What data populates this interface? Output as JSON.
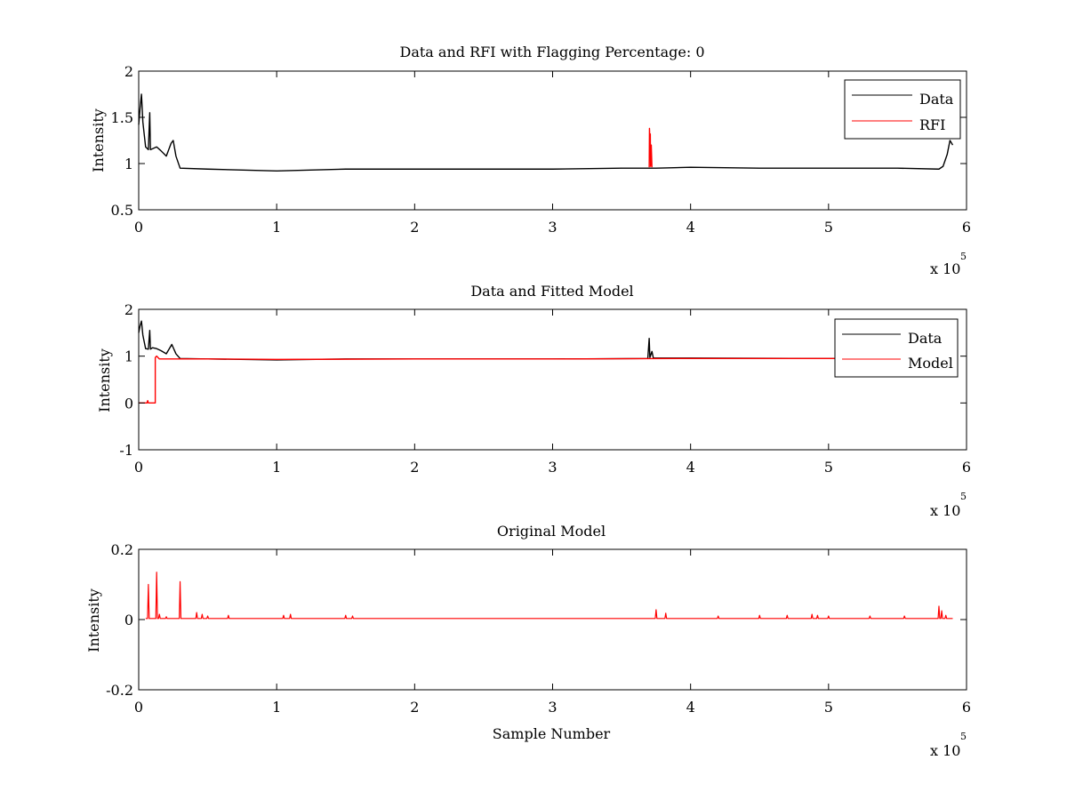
{
  "chart_data": [
    {
      "type": "line",
      "title": "Data and RFI with Flagging Percentage: 0",
      "xlabel": "",
      "ylabel": "Intensity",
      "xlim": [
        0,
        6
      ],
      "ylim": [
        0.5,
        2
      ],
      "xticks": [
        0,
        1,
        2,
        3,
        4,
        5,
        6
      ],
      "xticklabels": [
        "0",
        "1",
        "2",
        "3",
        "4",
        "5",
        "6"
      ],
      "yticks": [
        0.5,
        1,
        1.5,
        2
      ],
      "yticklabels": [
        "0.5",
        "1",
        "1.5",
        "2"
      ],
      "x_multiplier": {
        "base": "x 10",
        "exponent": "5"
      },
      "legend": {
        "position": "top-right",
        "entries": [
          "Data",
          "RFI"
        ]
      },
      "grid": false,
      "series": [
        {
          "name": "Data",
          "color": "#000000",
          "points": [
            [
              0,
              1.42
            ],
            [
              0.01,
              1.6
            ],
            [
              0.02,
              1.75
            ],
            [
              0.03,
              1.45
            ],
            [
              0.05,
              1.18
            ],
            [
              0.07,
              1.15
            ],
            [
              0.08,
              1.55
            ],
            [
              0.085,
              1.15
            ],
            [
              0.1,
              1.16
            ],
            [
              0.13,
              1.18
            ],
            [
              0.16,
              1.14
            ],
            [
              0.2,
              1.08
            ],
            [
              0.235,
              1.22
            ],
            [
              0.25,
              1.25
            ],
            [
              0.27,
              1.08
            ],
            [
              0.3,
              0.95
            ],
            [
              0.5,
              0.94
            ],
            [
              1.0,
              0.92
            ],
            [
              1.5,
              0.94
            ],
            [
              2.0,
              0.94
            ],
            [
              2.5,
              0.94
            ],
            [
              3.0,
              0.94
            ],
            [
              3.5,
              0.95
            ],
            [
              3.69,
              0.95
            ],
            [
              3.75,
              0.95
            ],
            [
              4.0,
              0.96
            ],
            [
              4.5,
              0.95
            ],
            [
              5.0,
              0.95
            ],
            [
              5.5,
              0.95
            ],
            [
              5.8,
              0.94
            ],
            [
              5.83,
              0.97
            ],
            [
              5.86,
              1.1
            ],
            [
              5.88,
              1.25
            ],
            [
              5.9,
              1.2
            ]
          ]
        },
        {
          "name": "RFI",
          "color": "#ff0000",
          "points": [
            [
              3.7,
              0.96
            ],
            [
              3.702,
              1.38
            ],
            [
              3.705,
              1.25
            ],
            [
              3.708,
              1.32
            ],
            [
              3.71,
              0.97
            ],
            [
              3.715,
              1.2
            ],
            [
              3.72,
              0.96
            ]
          ]
        }
      ]
    },
    {
      "type": "line",
      "title": "Data and Fitted Model",
      "xlabel": "",
      "ylabel": "Intensity",
      "xlim": [
        0,
        6
      ],
      "ylim": [
        -1,
        2
      ],
      "xticks": [
        0,
        1,
        2,
        3,
        4,
        5,
        6
      ],
      "xticklabels": [
        "0",
        "1",
        "2",
        "3",
        "4",
        "5",
        "6"
      ],
      "yticks": [
        -1,
        0,
        1,
        2
      ],
      "yticklabels": [
        "-1",
        "0",
        "1",
        "2"
      ],
      "x_multiplier": {
        "base": "x 10",
        "exponent": "5"
      },
      "legend": {
        "position": "top-right",
        "entries": [
          "Data",
          "Model"
        ]
      },
      "grid": false,
      "series": [
        {
          "name": "Data",
          "color": "#000000",
          "points": [
            [
              0,
              1.5
            ],
            [
              0.01,
              1.65
            ],
            [
              0.02,
              1.75
            ],
            [
              0.03,
              1.45
            ],
            [
              0.05,
              1.16
            ],
            [
              0.07,
              1.15
            ],
            [
              0.08,
              1.55
            ],
            [
              0.085,
              1.15
            ],
            [
              0.1,
              1.18
            ],
            [
              0.13,
              1.16
            ],
            [
              0.16,
              1.12
            ],
            [
              0.2,
              1.05
            ],
            [
              0.24,
              1.25
            ],
            [
              0.27,
              1.05
            ],
            [
              0.3,
              0.95
            ],
            [
              0.5,
              0.94
            ],
            [
              1.0,
              0.92
            ],
            [
              1.5,
              0.94
            ],
            [
              2.0,
              0.94
            ],
            [
              3.0,
              0.94
            ],
            [
              3.69,
              0.95
            ],
            [
              3.7,
              1.38
            ],
            [
              3.705,
              0.97
            ],
            [
              3.72,
              1.1
            ],
            [
              3.73,
              0.96
            ],
            [
              4.0,
              0.96
            ],
            [
              5.0,
              0.95
            ],
            [
              5.9,
              0.95
            ]
          ]
        },
        {
          "name": "Model",
          "color": "#ff0000",
          "points": [
            [
              0,
              0.0
            ],
            [
              0.06,
              0.0
            ],
            [
              0.065,
              0.05
            ],
            [
              0.07,
              0.0
            ],
            [
              0.12,
              0.0
            ],
            [
              0.12,
              0.97
            ],
            [
              0.13,
              1.0
            ],
            [
              0.15,
              0.94
            ],
            [
              0.3,
              0.94
            ],
            [
              0.5,
              0.94
            ],
            [
              1.0,
              0.93
            ],
            [
              2.0,
              0.94
            ],
            [
              3.0,
              0.94
            ],
            [
              4.0,
              0.95
            ],
            [
              5.0,
              0.95
            ],
            [
              5.9,
              0.95
            ]
          ]
        }
      ]
    },
    {
      "type": "line",
      "title": "Original Model",
      "xlabel": "Sample Number",
      "ylabel": "Intensity",
      "xlim": [
        0,
        6
      ],
      "ylim": [
        -0.2,
        0.2
      ],
      "xticks": [
        0,
        1,
        2,
        3,
        4,
        5,
        6
      ],
      "xticklabels": [
        "0",
        "1",
        "2",
        "3",
        "4",
        "5",
        "6"
      ],
      "yticks": [
        -0.2,
        0,
        0.2
      ],
      "yticklabels": [
        "-0.2",
        "0",
        "0.2"
      ],
      "x_multiplier": {
        "base": "x 10",
        "exponent": "5"
      },
      "grid": false,
      "series": [
        {
          "name": "",
          "color": "#ff0000",
          "baseline": 0.003,
          "spikes": [
            [
              0.07,
              0.1
            ],
            [
              0.13,
              0.135
            ],
            [
              0.15,
              0.015
            ],
            [
              0.2,
              0.008
            ],
            [
              0.3,
              0.108
            ],
            [
              0.42,
              0.02
            ],
            [
              0.46,
              0.015
            ],
            [
              0.5,
              0.01
            ],
            [
              0.65,
              0.012
            ],
            [
              1.05,
              0.012
            ],
            [
              1.1,
              0.015
            ],
            [
              1.5,
              0.012
            ],
            [
              1.55,
              0.01
            ],
            [
              3.75,
              0.028
            ],
            [
              3.82,
              0.018
            ],
            [
              4.2,
              0.01
            ],
            [
              4.5,
              0.012
            ],
            [
              4.7,
              0.012
            ],
            [
              4.88,
              0.015
            ],
            [
              4.92,
              0.012
            ],
            [
              5.0,
              0.01
            ],
            [
              5.3,
              0.01
            ],
            [
              5.55,
              0.01
            ],
            [
              5.8,
              0.038
            ],
            [
              5.82,
              0.025
            ],
            [
              5.85,
              0.012
            ]
          ]
        }
      ]
    }
  ]
}
